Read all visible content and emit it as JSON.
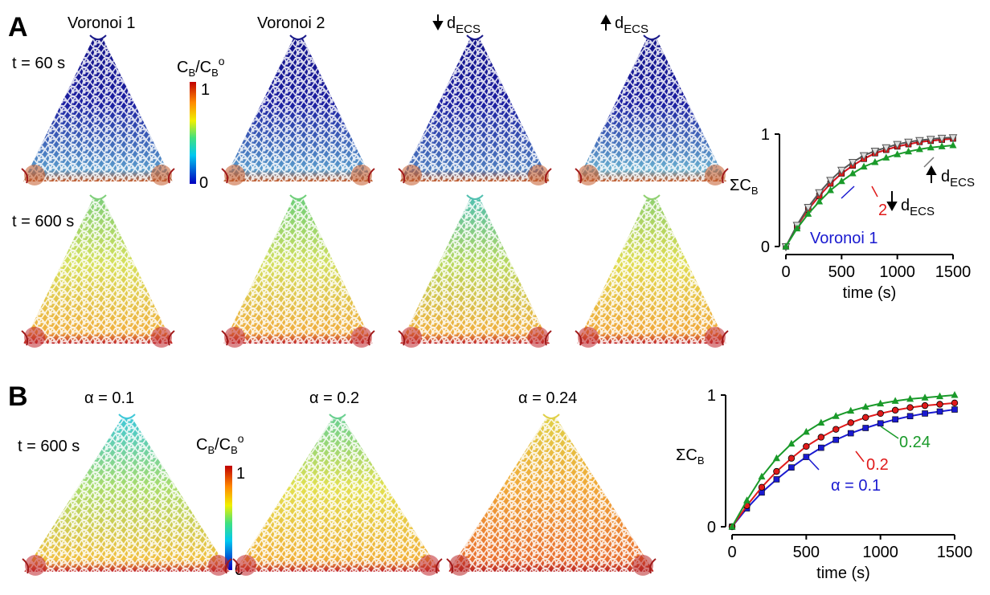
{
  "panel_a": {
    "letter": "A",
    "time_top": "t = 60 s",
    "time_bottom": "t = 600 s",
    "column_titles": [
      "Voronoi 1",
      "Voronoi 2",
      "dECS",
      "dECS"
    ],
    "colorbar": {
      "max": "1",
      "min": "0"
    },
    "maps_top": [
      {
        "colors": {
          "top": "#15158a",
          "mid": "#1c1ea0",
          "bot": "#5a9ccc",
          "corner": "#c45a28"
        }
      },
      {
        "colors": {
          "top": "#15158a",
          "mid": "#1c1ea0",
          "bot": "#5a9ccc",
          "corner": "#c45a28"
        }
      },
      {
        "colors": {
          "top": "#15158a",
          "mid": "#1c1ea0",
          "bot": "#4f7fc0",
          "corner": "#c45a28"
        }
      },
      {
        "colors": {
          "top": "#15158a",
          "mid": "#1c1ea0",
          "bot": "#6ab0d0",
          "corner": "#c45a28"
        }
      }
    ],
    "maps_bottom": [
      {
        "colors": {
          "top": "#7fcf7a",
          "mid": "#d6e05a",
          "bot": "#f0b040",
          "corner": "#c0242a"
        }
      },
      {
        "colors": {
          "top": "#6fcf7a",
          "mid": "#d2de5c",
          "bot": "#f0ae40",
          "corner": "#c0242a"
        }
      },
      {
        "colors": {
          "top": "#52c0b0",
          "mid": "#b8d85c",
          "bot": "#f0b040",
          "corner": "#c0242a"
        }
      },
      {
        "colors": {
          "top": "#8fd070",
          "mid": "#e0dc50",
          "bot": "#f0a83c",
          "corner": "#c0242a"
        }
      }
    ]
  },
  "panel_b": {
    "letter": "B",
    "time": "t = 600 s",
    "column_titles": [
      "α = 0.1",
      "α = 0.2",
      "α = 0.24"
    ],
    "colorbar": {
      "max": "1",
      "min": "0"
    },
    "maps": [
      {
        "colors": {
          "top": "#40c8d8",
          "mid": "#a8dc6a",
          "bot": "#f0c040",
          "corner": "#c0242a"
        }
      },
      {
        "colors": {
          "top": "#6ad090",
          "mid": "#e2e050",
          "bot": "#f0b038",
          "corner": "#c0242a"
        }
      },
      {
        "colors": {
          "top": "#e0d048",
          "mid": "#f0a838",
          "bot": "#e87030",
          "corner": "#b82424"
        }
      }
    ]
  },
  "chart_data": [
    {
      "type": "line",
      "x": [
        0,
        100,
        200,
        300,
        400,
        500,
        600,
        700,
        800,
        900,
        1000,
        1100,
        1200,
        1300,
        1400,
        1500
      ],
      "xlabel": "time (s)",
      "ylabel": "ΣC_B",
      "xticks": [
        "0",
        "500",
        "1000",
        "1500"
      ],
      "yticks": [
        "0",
        "1"
      ],
      "xlim": [
        0,
        1500
      ],
      "ylim": [
        0,
        1
      ],
      "series": [
        {
          "name": "Voronoi 1",
          "color": "#1a1ad0",
          "marker": "none",
          "values": [
            0,
            0.18,
            0.33,
            0.45,
            0.56,
            0.65,
            0.72,
            0.78,
            0.83,
            0.86,
            0.89,
            0.91,
            0.93,
            0.94,
            0.95,
            0.96
          ]
        },
        {
          "name": "2",
          "color": "#e01a1a",
          "marker": "square",
          "values": [
            0,
            0.18,
            0.33,
            0.45,
            0.56,
            0.65,
            0.72,
            0.78,
            0.83,
            0.86,
            0.89,
            0.91,
            0.93,
            0.94,
            0.95,
            0.96
          ]
        },
        {
          "name": "dECS",
          "color": "#555555",
          "marker": "triangle-down",
          "values": [
            0,
            0.19,
            0.35,
            0.48,
            0.59,
            0.68,
            0.75,
            0.81,
            0.85,
            0.88,
            0.91,
            0.93,
            0.945,
            0.955,
            0.965,
            0.97
          ]
        },
        {
          "name": "dECS",
          "color": "#1a9a2a",
          "marker": "triangle-up",
          "values": [
            0,
            0.16,
            0.29,
            0.4,
            0.5,
            0.58,
            0.65,
            0.71,
            0.75,
            0.79,
            0.82,
            0.845,
            0.865,
            0.88,
            0.89,
            0.9
          ]
        }
      ],
      "annotations": [
        "Voronoi 1",
        "2",
        "dECS",
        "dECS"
      ],
      "annotation_colors": [
        "#1a1ad0",
        "#e01a1a",
        "#000000",
        "#000000"
      ]
    },
    {
      "type": "line",
      "x": [
        0,
        100,
        200,
        300,
        400,
        500,
        600,
        700,
        800,
        900,
        1000,
        1100,
        1200,
        1300,
        1400,
        1500
      ],
      "xlabel": "time (s)",
      "ylabel": "ΣC_B",
      "xticks": [
        "0",
        "500",
        "1000",
        "1500"
      ],
      "yticks": [
        "0",
        "1"
      ],
      "xlim": [
        0,
        1500
      ],
      "ylim": [
        0,
        1
      ],
      "series": [
        {
          "name": "α = 0.1",
          "color": "#1a1ad0",
          "marker": "square",
          "values": [
            0,
            0.14,
            0.26,
            0.36,
            0.45,
            0.53,
            0.6,
            0.66,
            0.71,
            0.75,
            0.785,
            0.815,
            0.84,
            0.86,
            0.875,
            0.89
          ]
        },
        {
          "name": "0.2",
          "color": "#e01a1a",
          "marker": "circle",
          "values": [
            0,
            0.16,
            0.3,
            0.42,
            0.52,
            0.61,
            0.68,
            0.74,
            0.79,
            0.83,
            0.86,
            0.885,
            0.905,
            0.92,
            0.93,
            0.94
          ]
        },
        {
          "name": "0.24",
          "color": "#1a9a2a",
          "marker": "triangle-up",
          "values": [
            0,
            0.2,
            0.38,
            0.52,
            0.63,
            0.72,
            0.79,
            0.84,
            0.88,
            0.91,
            0.935,
            0.955,
            0.97,
            0.98,
            0.99,
            1.0
          ]
        }
      ],
      "annotations": [
        "α = 0.1",
        "0.2",
        "0.24"
      ],
      "annotation_colors": [
        "#1a1ad0",
        "#e01a1a",
        "#1a9a2a"
      ]
    }
  ]
}
